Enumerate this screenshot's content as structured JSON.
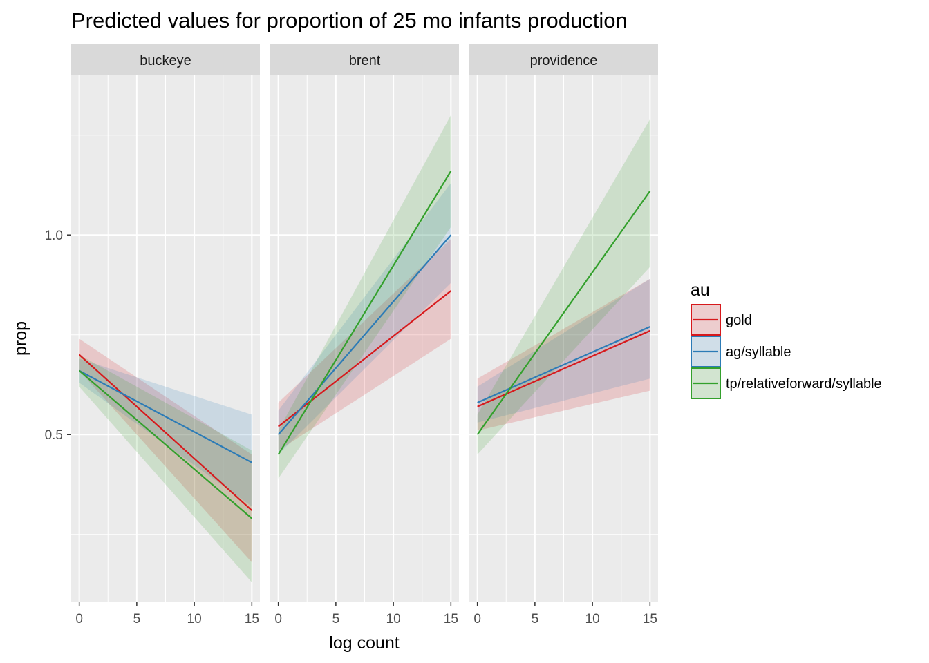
{
  "chart_data": {
    "type": "line",
    "title": "Predicted values for proportion of 25 mo infants production",
    "xlabel": "log count",
    "ylabel": "prop",
    "xlim": [
      -0.7,
      15.7
    ],
    "ylim": [
      0.08,
      1.4
    ],
    "x_ticks": [
      0,
      5,
      10,
      15
    ],
    "y_ticks": [
      0.5,
      1.0
    ],
    "y_tick_labels": [
      "0.5",
      "1.0"
    ],
    "grid": true,
    "legend": {
      "title": "au",
      "position": "right",
      "entries": [
        "gold",
        "ag/syllable",
        "tp/relativeforward/syllable"
      ]
    },
    "colors": {
      "gold": "#d7191c",
      "ag/syllable": "#2c7bb6",
      "tp/relativeforward/syllable": "#33a02c"
    },
    "panels": [
      {
        "name": "buckeye",
        "series": [
          {
            "name": "gold",
            "x": [
              0,
              15
            ],
            "y": [
              0.7,
              0.31
            ],
            "lower": [
              0.66,
              0.18
            ],
            "upper": [
              0.74,
              0.45
            ]
          },
          {
            "name": "ag/syllable",
            "x": [
              0,
              15
            ],
            "y": [
              0.66,
              0.43
            ],
            "lower": [
              0.63,
              0.32
            ],
            "upper": [
              0.69,
              0.55
            ]
          },
          {
            "name": "tp/relativeforward/syllable",
            "x": [
              0,
              15
            ],
            "y": [
              0.66,
              0.29
            ],
            "lower": [
              0.62,
              0.13
            ],
            "upper": [
              0.7,
              0.46
            ]
          }
        ]
      },
      {
        "name": "brent",
        "series": [
          {
            "name": "gold",
            "x": [
              0,
              15
            ],
            "y": [
              0.52,
              0.86
            ],
            "lower": [
              0.46,
              0.74
            ],
            "upper": [
              0.58,
              0.99
            ]
          },
          {
            "name": "ag/syllable",
            "x": [
              0,
              15
            ],
            "y": [
              0.5,
              1.0
            ],
            "lower": [
              0.45,
              0.88
            ],
            "upper": [
              0.56,
              1.13
            ]
          },
          {
            "name": "tp/relativeforward/syllable",
            "x": [
              0,
              15
            ],
            "y": [
              0.45,
              1.16
            ],
            "lower": [
              0.39,
              1.02
            ],
            "upper": [
              0.51,
              1.3
            ]
          }
        ]
      },
      {
        "name": "providence",
        "series": [
          {
            "name": "gold",
            "x": [
              0,
              15
            ],
            "y": [
              0.57,
              0.76
            ],
            "lower": [
              0.51,
              0.61
            ],
            "upper": [
              0.64,
              0.89
            ]
          },
          {
            "name": "ag/syllable",
            "x": [
              0,
              15
            ],
            "y": [
              0.58,
              0.77
            ],
            "lower": [
              0.53,
              0.64
            ],
            "upper": [
              0.62,
              0.89
            ]
          },
          {
            "name": "tp/relativeforward/syllable",
            "x": [
              0,
              15
            ],
            "y": [
              0.5,
              1.11
            ],
            "lower": [
              0.45,
              0.92
            ],
            "upper": [
              0.55,
              1.29
            ]
          }
        ]
      }
    ]
  }
}
